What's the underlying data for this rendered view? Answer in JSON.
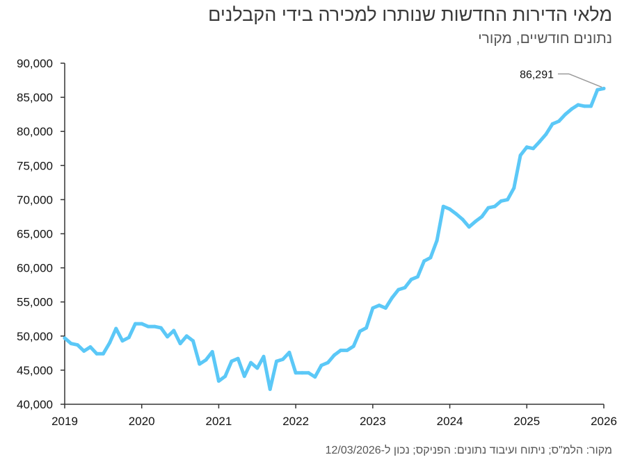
{
  "chart_data": {
    "type": "line",
    "title": "מלאי הדירות החדשות שנותרו למכירה בידי הקבלנים",
    "subtitle": "נתונים חודשיים, מקורי",
    "source": "מקור: הלמ\"ס; ניתוח ועיבוד נתונים: הפניקס; נכון ל-12/03/2026",
    "ylim": [
      40000,
      90000
    ],
    "yticks": [
      40000,
      45000,
      50000,
      55000,
      60000,
      65000,
      70000,
      75000,
      80000,
      85000,
      90000
    ],
    "ytick_labels": [
      "40,000",
      "45,000",
      "50,000",
      "55,000",
      "60,000",
      "65,000",
      "70,000",
      "75,000",
      "80,000",
      "85,000",
      "90,000"
    ],
    "xlim": [
      2019,
      2026
    ],
    "xticks": [
      2019,
      2020,
      2021,
      2022,
      2023,
      2024,
      2025,
      2026
    ],
    "xtick_labels": [
      "2019",
      "2020",
      "2021",
      "2022",
      "2023",
      "2024",
      "2025",
      "2026"
    ],
    "grid": false,
    "line_color": "#5bc8f7",
    "series": [
      {
        "x": [
          "2019-01",
          "2019-02",
          "2019-03",
          "2019-04",
          "2019-05",
          "2019-06",
          "2019-07",
          "2019-08",
          "2019-09",
          "2019-10",
          "2019-11",
          "2019-12",
          "2020-01",
          "2020-02",
          "2020-03",
          "2020-04",
          "2020-05",
          "2020-06",
          "2020-07",
          "2020-08",
          "2020-09",
          "2020-10",
          "2020-11",
          "2020-12",
          "2021-01",
          "2021-02",
          "2021-03",
          "2021-04",
          "2021-05",
          "2021-06",
          "2021-07",
          "2021-08",
          "2021-09",
          "2021-10",
          "2021-11",
          "2021-12",
          "2022-01",
          "2022-02",
          "2022-03",
          "2022-04",
          "2022-05",
          "2022-06",
          "2022-07",
          "2022-08",
          "2022-09",
          "2022-10",
          "2022-11",
          "2022-12",
          "2023-01",
          "2023-02",
          "2023-03",
          "2023-04",
          "2023-05",
          "2023-06",
          "2023-07",
          "2023-08",
          "2023-09",
          "2023-10",
          "2023-11",
          "2023-12",
          "2024-01",
          "2024-02",
          "2024-03",
          "2024-04",
          "2024-05",
          "2024-06",
          "2024-07",
          "2024-08",
          "2024-09",
          "2024-10",
          "2024-11",
          "2024-12",
          "2025-01",
          "2025-02",
          "2025-03",
          "2025-04",
          "2025-05",
          "2025-06",
          "2025-07",
          "2025-08",
          "2025-09",
          "2025-10",
          "2025-11",
          "2025-12",
          "2026-01"
        ],
        "values": [
          49700,
          48900,
          48700,
          47800,
          48400,
          47400,
          47400,
          49000,
          51100,
          49300,
          49800,
          51800,
          51800,
          51400,
          51400,
          51200,
          49900,
          50800,
          48900,
          50000,
          49300,
          45900,
          46500,
          47700,
          43400,
          44100,
          46300,
          46700,
          44100,
          46100,
          45300,
          47000,
          42200,
          46300,
          46600,
          47600,
          44600,
          44600,
          44600,
          44000,
          45700,
          46100,
          47200,
          47900,
          47900,
          48500,
          50700,
          51200,
          54100,
          54500,
          54100,
          55600,
          56800,
          57100,
          58300,
          58700,
          61000,
          61500,
          64000,
          69000,
          68600,
          67900,
          67100,
          66000,
          66800,
          67500,
          68800,
          69000,
          69800,
          70000,
          71700,
          76500,
          77700,
          77500,
          78500,
          79600,
          81100,
          81500,
          82500,
          83300,
          83900,
          83700,
          83700,
          86100,
          86291
        ]
      }
    ],
    "annotations": [
      {
        "x": "2026-01",
        "y": 86291,
        "text": "86,291"
      }
    ]
  }
}
